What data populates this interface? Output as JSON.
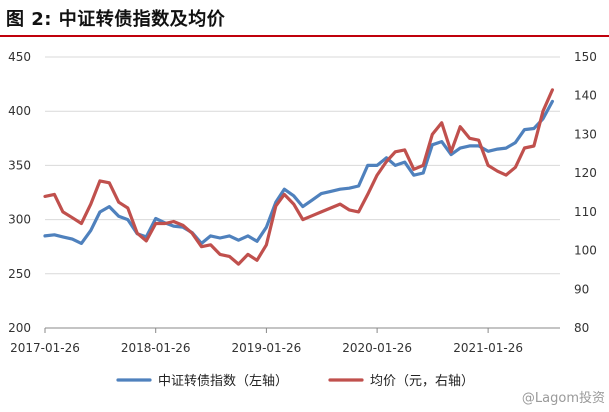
{
  "title": "图 2:  中证转债指数及均价",
  "watermark": "@Lagom投资",
  "chart_data": {
    "type": "line",
    "x_ticks": [
      "2017-01-26",
      "2018-01-26",
      "2019-01-26",
      "2020-01-26",
      "2021-01-26"
    ],
    "x_range": [
      "2017-01-26",
      "2021-09-20"
    ],
    "y_left": {
      "ticks": [
        200,
        250,
        300,
        350,
        400,
        450
      ],
      "range": [
        200,
        450
      ]
    },
    "y_right": {
      "ticks": [
        80,
        90,
        100,
        110,
        120,
        130,
        140,
        150
      ],
      "range": [
        80,
        150
      ]
    },
    "grid": {
      "horizontal": true,
      "vertical": false
    },
    "legend_position": "bottom",
    "series": [
      {
        "name": "中证转债指数（左轴）",
        "axis": "left",
        "color": "#4f81bd",
        "points": [
          [
            "2017-01-26",
            285
          ],
          [
            "2017-02-26",
            286
          ],
          [
            "2017-03-26",
            284
          ],
          [
            "2017-04-26",
            282
          ],
          [
            "2017-05-26",
            278
          ],
          [
            "2017-06-26",
            290
          ],
          [
            "2017-07-26",
            307
          ],
          [
            "2017-08-26",
            312
          ],
          [
            "2017-09-26",
            303
          ],
          [
            "2017-10-26",
            300
          ],
          [
            "2017-11-26",
            287
          ],
          [
            "2017-12-26",
            284
          ],
          [
            "2018-01-26",
            301
          ],
          [
            "2018-02-26",
            297
          ],
          [
            "2018-03-26",
            294
          ],
          [
            "2018-04-26",
            293
          ],
          [
            "2018-05-26",
            288
          ],
          [
            "2018-06-26",
            278
          ],
          [
            "2018-07-26",
            285
          ],
          [
            "2018-08-26",
            283
          ],
          [
            "2018-09-26",
            285
          ],
          [
            "2018-10-26",
            281
          ],
          [
            "2018-11-26",
            285
          ],
          [
            "2018-12-26",
            280
          ],
          [
            "2019-01-26",
            293
          ],
          [
            "2019-02-26",
            316
          ],
          [
            "2019-03-26",
            328
          ],
          [
            "2019-04-26",
            322
          ],
          [
            "2019-05-26",
            312
          ],
          [
            "2019-06-26",
            318
          ],
          [
            "2019-07-26",
            324
          ],
          [
            "2019-08-26",
            326
          ],
          [
            "2019-09-26",
            328
          ],
          [
            "2019-10-26",
            329
          ],
          [
            "2019-11-26",
            331
          ],
          [
            "2019-12-26",
            350
          ],
          [
            "2020-01-26",
            350
          ],
          [
            "2020-02-26",
            357
          ],
          [
            "2020-03-26",
            350
          ],
          [
            "2020-04-26",
            353
          ],
          [
            "2020-05-26",
            341
          ],
          [
            "2020-06-26",
            343
          ],
          [
            "2020-07-26",
            369
          ],
          [
            "2020-08-26",
            372
          ],
          [
            "2020-09-26",
            360
          ],
          [
            "2020-10-26",
            366
          ],
          [
            "2020-11-26",
            368
          ],
          [
            "2020-12-26",
            368
          ],
          [
            "2021-01-26",
            363
          ],
          [
            "2021-02-26",
            365
          ],
          [
            "2021-03-26",
            366
          ],
          [
            "2021-04-26",
            371
          ],
          [
            "2021-05-26",
            383
          ],
          [
            "2021-06-26",
            384
          ],
          [
            "2021-07-26",
            393
          ],
          [
            "2021-08-26",
            409
          ]
        ]
      },
      {
        "name": "均价（元，右轴）",
        "axis": "right",
        "color": "#c0504d",
        "points": [
          [
            "2017-01-26",
            114
          ],
          [
            "2017-02-26",
            114.5
          ],
          [
            "2017-03-26",
            110
          ],
          [
            "2017-04-26",
            108.5
          ],
          [
            "2017-05-26",
            107
          ],
          [
            "2017-06-26",
            112
          ],
          [
            "2017-07-26",
            118
          ],
          [
            "2017-08-26",
            117.5
          ],
          [
            "2017-09-26",
            112.5
          ],
          [
            "2017-10-26",
            111
          ],
          [
            "2017-11-26",
            104.5
          ],
          [
            "2017-12-26",
            102.5
          ],
          [
            "2018-01-26",
            107
          ],
          [
            "2018-02-26",
            107
          ],
          [
            "2018-03-26",
            107.5
          ],
          [
            "2018-04-26",
            106.5
          ],
          [
            "2018-05-26",
            104.5
          ],
          [
            "2018-06-26",
            101
          ],
          [
            "2018-07-26",
            101.5
          ],
          [
            "2018-08-26",
            99
          ],
          [
            "2018-09-26",
            98.5
          ],
          [
            "2018-10-26",
            96.5
          ],
          [
            "2018-11-26",
            99
          ],
          [
            "2018-12-26",
            97.5
          ],
          [
            "2019-01-26",
            101.5
          ],
          [
            "2019-02-26",
            111.5
          ],
          [
            "2019-03-26",
            114.5
          ],
          [
            "2019-04-26",
            112
          ],
          [
            "2019-05-26",
            108
          ],
          [
            "2019-06-26",
            109
          ],
          [
            "2019-07-26",
            110
          ],
          [
            "2019-08-26",
            111
          ],
          [
            "2019-09-26",
            112
          ],
          [
            "2019-10-26",
            110.5
          ],
          [
            "2019-11-26",
            110
          ],
          [
            "2019-12-26",
            114.5
          ],
          [
            "2020-01-26",
            119.5
          ],
          [
            "2020-02-26",
            123
          ],
          [
            "2020-03-26",
            125.5
          ],
          [
            "2020-04-26",
            126
          ],
          [
            "2020-05-26",
            121
          ],
          [
            "2020-06-26",
            122
          ],
          [
            "2020-07-26",
            130
          ],
          [
            "2020-08-26",
            133
          ],
          [
            "2020-09-26",
            125.5
          ],
          [
            "2020-10-26",
            132
          ],
          [
            "2020-11-26",
            129
          ],
          [
            "2020-12-26",
            128.5
          ],
          [
            "2021-01-26",
            122
          ],
          [
            "2021-02-26",
            120.5
          ],
          [
            "2021-03-26",
            119.5
          ],
          [
            "2021-04-26",
            121.5
          ],
          [
            "2021-05-26",
            126.5
          ],
          [
            "2021-06-26",
            127
          ],
          [
            "2021-07-26",
            136
          ],
          [
            "2021-08-26",
            141.5
          ]
        ]
      }
    ]
  }
}
